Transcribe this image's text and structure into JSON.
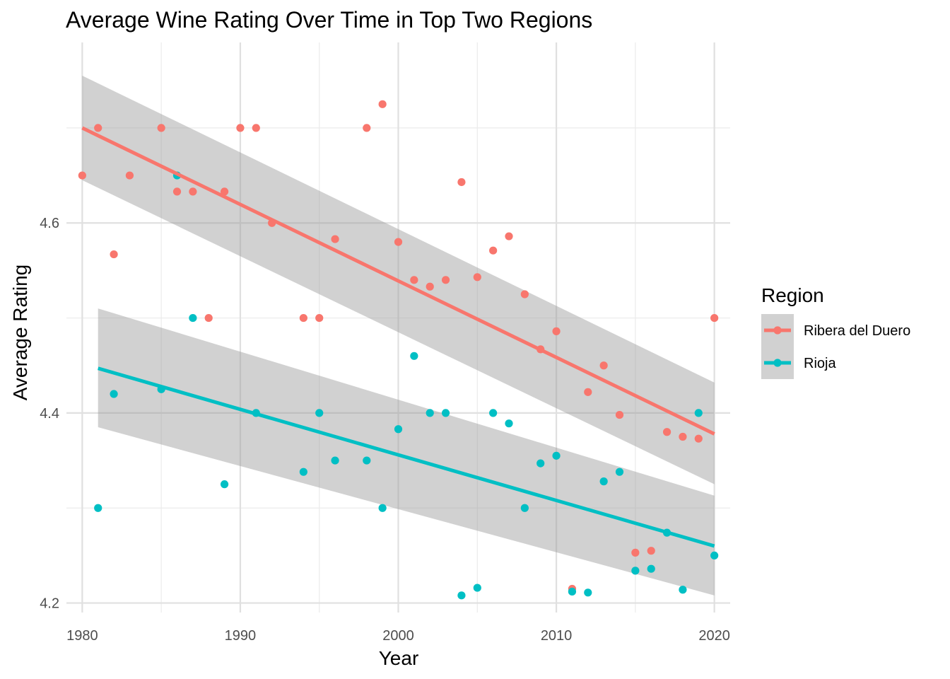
{
  "chart_data": {
    "type": "scatter",
    "title": "Average Wine Rating Over Time in Top Two Regions",
    "xlabel": "Year",
    "ylabel": "Average Rating",
    "xlim": [
      1979,
      2021
    ],
    "ylim": [
      4.19,
      4.79
    ],
    "x_ticks": [
      1980,
      1990,
      2000,
      2010,
      2020
    ],
    "y_ticks": [
      4.2,
      4.4,
      4.6
    ],
    "x_tick_labels": [
      "1980",
      "1990",
      "2000",
      "2010",
      "2020"
    ],
    "y_tick_labels": [
      "4.2",
      "4.4",
      "4.6"
    ],
    "grid": true,
    "legend": {
      "title": "Region",
      "position": "right"
    },
    "trend": "linear fit with confidence band",
    "series": [
      {
        "name": "Ribera del Duero",
        "color": "#f8766d",
        "points": [
          [
            1980,
            4.65
          ],
          [
            1981,
            4.7
          ],
          [
            1982,
            4.567
          ],
          [
            1983,
            4.65
          ],
          [
            1985,
            4.7
          ],
          [
            1986,
            4.633
          ],
          [
            1987,
            4.633
          ],
          [
            1988,
            4.5
          ],
          [
            1989,
            4.633
          ],
          [
            1990,
            4.7
          ],
          [
            1991,
            4.7
          ],
          [
            1992,
            4.6
          ],
          [
            1994,
            4.5
          ],
          [
            1995,
            4.5
          ],
          [
            1996,
            4.583
          ],
          [
            1998,
            4.7
          ],
          [
            1999,
            4.725
          ],
          [
            2000,
            4.58
          ],
          [
            2001,
            4.54
          ],
          [
            2002,
            4.533
          ],
          [
            2003,
            4.54
          ],
          [
            2004,
            4.643
          ],
          [
            2005,
            4.543
          ],
          [
            2006,
            4.571
          ],
          [
            2007,
            4.586
          ],
          [
            2008,
            4.525
          ],
          [
            2009,
            4.467
          ],
          [
            2010,
            4.486
          ],
          [
            2011,
            4.215
          ],
          [
            2012,
            4.422
          ],
          [
            2013,
            4.45
          ],
          [
            2014,
            4.398
          ],
          [
            2015,
            4.253
          ],
          [
            2016,
            4.255
          ],
          [
            2017,
            4.38
          ],
          [
            2018,
            4.375
          ],
          [
            2019,
            4.373
          ],
          [
            2020,
            4.5
          ]
        ],
        "fit": {
          "x": [
            1980,
            2020
          ],
          "y": [
            4.7,
            4.378
          ]
        },
        "band": {
          "x": [
            1980,
            2020
          ],
          "lower": [
            4.645,
            4.325
          ],
          "upper": [
            4.755,
            4.432
          ]
        }
      },
      {
        "name": "Rioja",
        "color": "#00bfc4",
        "points": [
          [
            1981,
            4.3
          ],
          [
            1982,
            4.42
          ],
          [
            1985,
            4.425
          ],
          [
            1986,
            4.65
          ],
          [
            1987,
            4.5
          ],
          [
            1989,
            4.325
          ],
          [
            1991,
            4.4
          ],
          [
            1994,
            4.338
          ],
          [
            1995,
            4.4
          ],
          [
            1996,
            4.35
          ],
          [
            1998,
            4.35
          ],
          [
            1999,
            4.3
          ],
          [
            2000,
            4.383
          ],
          [
            2001,
            4.46
          ],
          [
            2002,
            4.4
          ],
          [
            2003,
            4.4
          ],
          [
            2004,
            4.208
          ],
          [
            2005,
            4.216
          ],
          [
            2006,
            4.4
          ],
          [
            2007,
            4.389
          ],
          [
            2008,
            4.3
          ],
          [
            2009,
            4.347
          ],
          [
            2010,
            4.355
          ],
          [
            2011,
            4.212
          ],
          [
            2012,
            4.211
          ],
          [
            2013,
            4.328
          ],
          [
            2014,
            4.338
          ],
          [
            2015,
            4.234
          ],
          [
            2016,
            4.236
          ],
          [
            2017,
            4.274
          ],
          [
            2018,
            4.214
          ],
          [
            2019,
            4.4
          ],
          [
            2020,
            4.25
          ]
        ],
        "fit": {
          "x": [
            1981,
            2020
          ],
          "y": [
            4.447,
            4.26
          ]
        },
        "band": {
          "x": [
            1981,
            2020
          ],
          "lower": [
            4.385,
            4.208
          ],
          "upper": [
            4.51,
            4.313
          ]
        }
      }
    ]
  }
}
